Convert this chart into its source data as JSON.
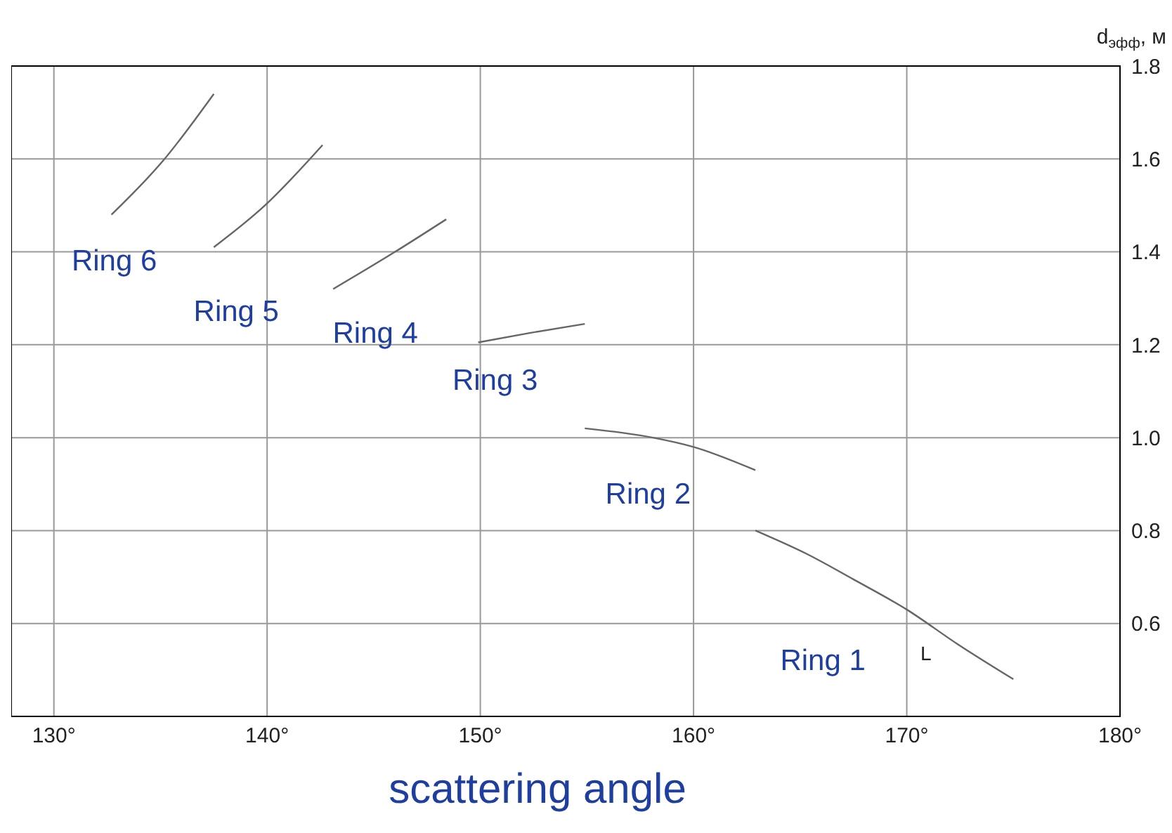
{
  "chart_data": {
    "type": "line",
    "xlabel": "scattering angle",
    "ylabel": "d$_{эфф}$, м",
    "grid": true,
    "xlim": [
      128,
      180
    ],
    "ylim": [
      0.4,
      1.8
    ],
    "xticks": [
      {
        "value": 130,
        "label": "130°"
      },
      {
        "value": 140,
        "label": "140°"
      },
      {
        "value": 150,
        "label": "150°"
      },
      {
        "value": 160,
        "label": "160°"
      },
      {
        "value": 170,
        "label": "170°"
      },
      {
        "value": 180,
        "label": "180°"
      }
    ],
    "yticks": [
      {
        "value": 0.6,
        "label": "0.6"
      },
      {
        "value": 0.8,
        "label": "0.8"
      },
      {
        "value": 1.0,
        "label": "1.0"
      },
      {
        "value": 1.2,
        "label": "1.2"
      },
      {
        "value": 1.4,
        "label": "1.4"
      },
      {
        "value": 1.6,
        "label": "1.6"
      },
      {
        "value": 1.8,
        "label": "1.8"
      }
    ],
    "series": [
      {
        "name": "Ring 1",
        "color": "#666666",
        "x": [
          162.9,
          165.3,
          167.5,
          170,
          172.4,
          175
        ],
        "values": [
          0.8,
          0.75,
          0.695,
          0.63,
          0.555,
          0.48
        ]
      },
      {
        "name": "Ring 2",
        "color": "#666666",
        "x": [
          154.9,
          158.1,
          160,
          162.9
        ],
        "values": [
          1.02,
          1.0,
          0.98,
          0.93
        ]
      },
      {
        "name": "Ring 3",
        "color": "#666666",
        "x": [
          149.9,
          152.4,
          154.9
        ],
        "values": [
          1.205,
          1.226,
          1.245
        ]
      },
      {
        "name": "Ring 4",
        "color": "#666666",
        "x": [
          143.1,
          146,
          148.4
        ],
        "values": [
          1.32,
          1.4,
          1.47
        ]
      },
      {
        "name": "Ring 5",
        "color": "#666666",
        "x": [
          137.5,
          139.9,
          142.6
        ],
        "values": [
          1.41,
          1.5,
          1.63
        ]
      },
      {
        "name": "Ring 6",
        "color": "#666666",
        "x": [
          132.7,
          135.1,
          137.5
        ],
        "values": [
          1.48,
          1.595,
          1.74
        ]
      }
    ],
    "annotations": [
      "L"
    ]
  }
}
